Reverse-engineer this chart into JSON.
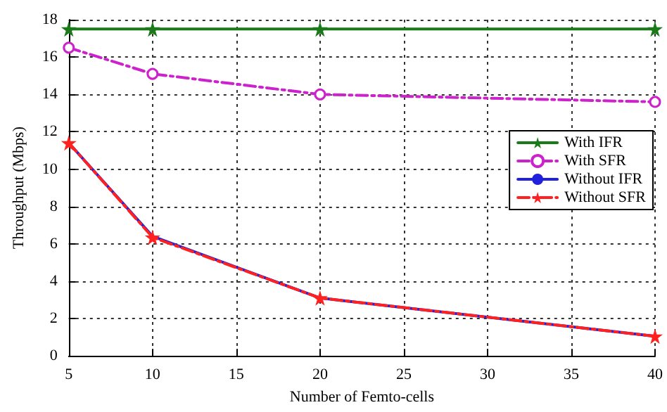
{
  "chart_data": {
    "type": "line",
    "xlabel": "Number of Femto-cells",
    "ylabel": "Throughput (Mbps)",
    "x": [
      5,
      10,
      20,
      40
    ],
    "series": [
      {
        "name": "With IFR",
        "color": "#1a7a1a",
        "values": [
          17.5,
          17.5,
          17.5,
          17.5
        ],
        "marker": "star",
        "line_style": "solid"
      },
      {
        "name": "With SFR",
        "color": "#cc22cc",
        "values": [
          16.5,
          15.1,
          14.0,
          13.6
        ],
        "marker": "circle",
        "line_style": "dashed"
      },
      {
        "name": "Without IFR",
        "color": "#2020dd",
        "values": [
          11.4,
          6.4,
          3.1,
          1.05
        ],
        "marker": "none",
        "line_style": "solid"
      },
      {
        "name": "Without SFR",
        "color": "#ff2020",
        "values": [
          11.4,
          6.35,
          3.1,
          1.05
        ],
        "marker": "star",
        "line_style": "dashed"
      }
    ],
    "xlim": [
      5,
      40
    ],
    "xticks": [
      5,
      10,
      15,
      20,
      25,
      30,
      35,
      40
    ],
    "ylim": [
      0,
      18
    ],
    "yticks": [
      0,
      2,
      4,
      6,
      8,
      10,
      12,
      14,
      16,
      18
    ],
    "grid": true,
    "legend": "right"
  }
}
